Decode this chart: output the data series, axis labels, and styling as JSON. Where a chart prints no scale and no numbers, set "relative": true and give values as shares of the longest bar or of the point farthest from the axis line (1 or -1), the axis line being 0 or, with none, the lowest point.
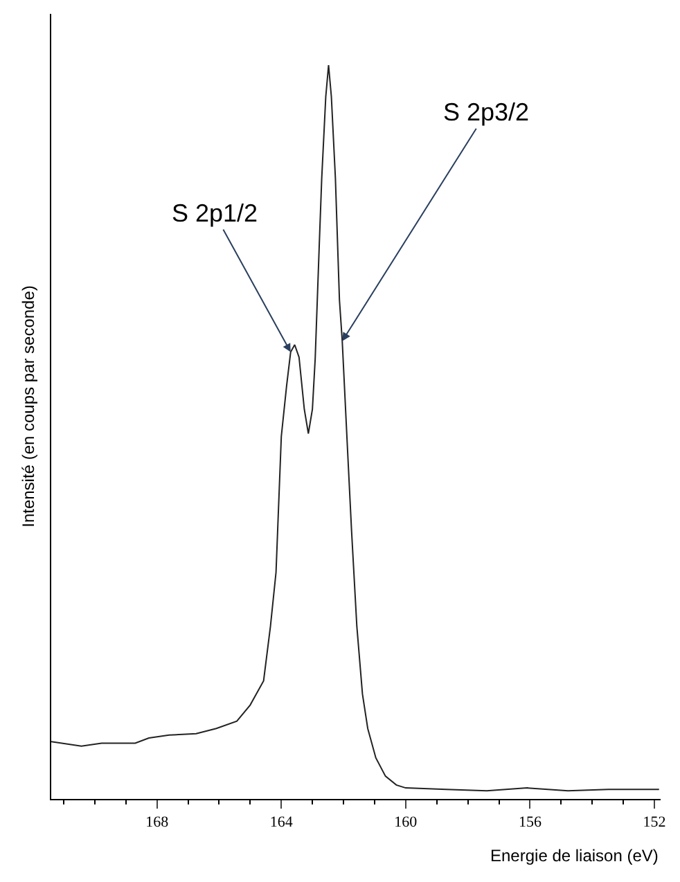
{
  "chart_data": {
    "type": "line",
    "relative": true,
    "xlabel": "Energie de liaison (eV)",
    "ylabel": "Intensité (en coups par seconde)",
    "xlim": [
      171.4,
      151.8
    ],
    "xticks": [
      168,
      164,
      160,
      156,
      152
    ],
    "legend": false,
    "marker": "none",
    "line_style": "solid",
    "x": [
      171.4,
      170.43,
      169.78,
      168.7,
      168.26,
      167.61,
      166.74,
      166.09,
      165.43,
      165.0,
      164.57,
      164.35,
      164.17,
      164.0,
      163.83,
      163.7,
      163.57,
      163.43,
      163.26,
      163.13,
      163.0,
      162.91,
      162.78,
      162.7,
      162.57,
      162.48,
      162.39,
      162.26,
      162.13,
      162.04,
      161.87,
      161.74,
      161.57,
      161.39,
      161.22,
      160.96,
      160.65,
      160.3,
      160.0,
      158.7,
      157.39,
      156.09,
      154.78,
      153.48,
      152.17,
      151.85
    ],
    "series": [
      {
        "color": "#222222",
        "values": [
          0.078,
          0.072,
          0.076,
          0.076,
          0.083,
          0.087,
          0.089,
          0.096,
          0.106,
          0.128,
          0.161,
          0.235,
          0.309,
          0.494,
          0.563,
          0.609,
          0.619,
          0.602,
          0.531,
          0.498,
          0.531,
          0.6,
          0.754,
          0.846,
          0.957,
          1,
          0.957,
          0.846,
          0.68,
          0.624,
          0.476,
          0.365,
          0.235,
          0.143,
          0.096,
          0.056,
          0.031,
          0.019,
          0.015,
          0.013,
          0.011,
          0.015,
          0.011,
          0.013,
          0.013,
          0.013
        ]
      }
    ],
    "annotations": [
      {
        "text": "S 2p1/2",
        "x": 163.7,
        "y": 0.609
      },
      {
        "text": "S 2p3/2",
        "x": 162.04,
        "y": 0.624
      }
    ]
  }
}
